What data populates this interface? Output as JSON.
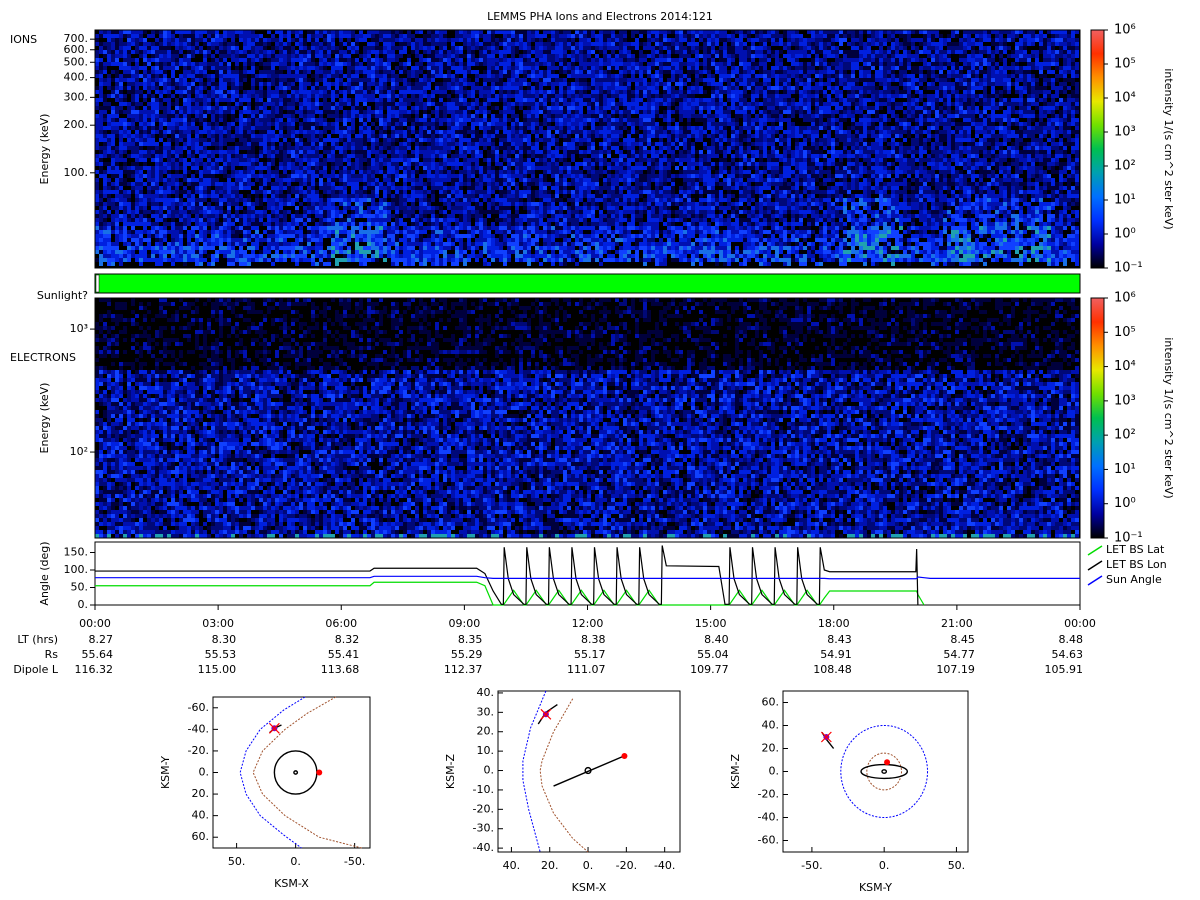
{
  "title": "LEMMS PHA Ions and Electrons  2014:121",
  "chart_data": [
    {
      "type": "spectrogram",
      "panel_label": "IONS",
      "ylabel": "Energy (keV)",
      "ylog": true,
      "ylim": [
        25,
        800
      ],
      "yticks": [
        {
          "value": 100,
          "label": "100."
        },
        {
          "value": 200,
          "label": "200."
        },
        {
          "value": 300,
          "label": "300."
        },
        {
          "value": 400,
          "label": "400."
        },
        {
          "value": 500,
          "label": "500."
        },
        {
          "value": 600,
          "label": "600."
        },
        {
          "value": 700,
          "label": "700."
        }
      ],
      "colorbar": {
        "label": "intensity 1/(s cm^2 ster keV)",
        "log": true,
        "lim": [
          0.1,
          1000000
        ],
        "ticks": [
          {
            "value": 0.1,
            "label": "10⁻¹"
          },
          {
            "value": 1,
            "label": "10⁰"
          },
          {
            "value": 10,
            "label": "10¹"
          },
          {
            "value": 100,
            "label": "10²"
          },
          {
            "value": 1000,
            "label": "10³"
          },
          {
            "value": 10000,
            "label": "10⁴"
          },
          {
            "value": 100000,
            "label": "10⁵"
          },
          {
            "value": 1000000,
            "label": "10⁶"
          }
        ],
        "colors": [
          "#000000",
          "#0000a0",
          "#0030ff",
          "#0070ff",
          "#00a0b0",
          "#00c050",
          "#70e000",
          "#e8e800",
          "#ff9000",
          "#ff3000",
          "#f06060"
        ]
      }
    },
    {
      "type": "status",
      "label": "Sunlight?",
      "color": "#00ff00"
    },
    {
      "type": "spectrogram",
      "panel_label": "ELECTRONS",
      "ylabel": "Energy (keV)",
      "ylog": true,
      "ylim": [
        20,
        1790
      ],
      "yticks": [
        {
          "value": 100,
          "label": "10²"
        },
        {
          "value": 1000,
          "label": "10³"
        }
      ],
      "colorbar": {
        "label": "intensity 1/(s cm^2 ster keV)",
        "log": true,
        "lim": [
          0.1,
          1000000
        ],
        "ticks": [
          {
            "value": 0.1,
            "label": "10⁻¹"
          },
          {
            "value": 1,
            "label": "10⁰"
          },
          {
            "value": 10,
            "label": "10¹"
          },
          {
            "value": 100,
            "label": "10²"
          },
          {
            "value": 1000,
            "label": "10³"
          },
          {
            "value": 10000,
            "label": "10⁴"
          },
          {
            "value": 100000,
            "label": "10⁵"
          },
          {
            "value": 1000000,
            "label": "10⁶"
          }
        ],
        "colors": [
          "#000000",
          "#0000a0",
          "#0030ff",
          "#0070ff",
          "#00a0b0",
          "#00c050",
          "#70e000",
          "#e8e800",
          "#ff9000",
          "#ff3000",
          "#f06060"
        ]
      }
    },
    {
      "type": "line",
      "ylabel": "Angle (deg)",
      "legend": "right",
      "xlim": [
        0,
        24
      ],
      "xticks": [
        {
          "value": 0,
          "label": "00:00"
        },
        {
          "value": 3,
          "label": "03:00"
        },
        {
          "value": 6,
          "label": "06:00"
        },
        {
          "value": 9,
          "label": "09:00"
        },
        {
          "value": 12,
          "label": "12:00"
        },
        {
          "value": 15,
          "label": "15:00"
        },
        {
          "value": 18,
          "label": "18:00"
        },
        {
          "value": 21,
          "label": "21:00"
        },
        {
          "value": 24,
          "label": "00:00"
        }
      ],
      "ylim": [
        0,
        180
      ],
      "yticks": [
        {
          "value": 0,
          "label": "0."
        },
        {
          "value": 50,
          "label": "50."
        },
        {
          "value": 100,
          "label": "100."
        },
        {
          "value": 150,
          "label": "150."
        }
      ],
      "x": [
        0,
        6.7,
        6.8,
        9.3,
        9.5,
        9.7,
        9.9,
        9.95,
        9.97,
        10.07,
        10.2,
        10.45,
        10.5,
        10.52,
        10.62,
        10.75,
        11.0,
        11.05,
        11.07,
        11.17,
        11.3,
        11.55,
        11.6,
        11.62,
        11.72,
        11.85,
        12.1,
        12.15,
        12.17,
        12.27,
        12.4,
        12.65,
        12.7,
        12.72,
        12.82,
        12.95,
        13.2,
        13.25,
        13.27,
        13.37,
        13.5,
        13.75,
        13.8,
        13.82,
        13.92,
        15.2,
        15.35,
        15.45,
        15.47,
        15.57,
        15.7,
        15.95,
        16.0,
        16.02,
        16.12,
        16.25,
        16.5,
        16.55,
        16.57,
        16.67,
        16.8,
        17.05,
        17.1,
        17.12,
        17.22,
        17.35,
        17.6,
        17.65,
        17.67,
        17.77,
        17.9,
        20.0,
        20.02,
        20.05,
        20.2,
        20.35,
        24
      ],
      "series": [
        {
          "name": "LET BS Lat",
          "color": "#00dd00",
          "values": [
            55,
            55,
            65,
            65,
            55,
            0,
            0,
            0,
            3,
            20,
            42,
            0,
            0,
            3,
            20,
            42,
            0,
            0,
            3,
            20,
            42,
            0,
            0,
            3,
            20,
            42,
            0,
            0,
            3,
            20,
            42,
            0,
            0,
            3,
            20,
            42,
            0,
            0,
            3,
            20,
            42,
            0,
            0,
            0,
            0,
            0,
            0,
            0,
            3,
            20,
            42,
            0,
            0,
            3,
            20,
            42,
            0,
            0,
            3,
            20,
            42,
            0,
            0,
            3,
            20,
            42,
            0,
            0,
            3,
            20,
            40,
            40,
            40,
            30,
            0,
            null,
            null
          ]
        },
        {
          "name": "LET BS Lon",
          "color": "#000000",
          "values": [
            97,
            97,
            105,
            105,
            90,
            40,
            2,
            2,
            165,
            75,
            30,
            2,
            2,
            165,
            75,
            30,
            2,
            2,
            165,
            75,
            30,
            2,
            2,
            165,
            75,
            30,
            2,
            2,
            165,
            75,
            30,
            2,
            2,
            165,
            75,
            30,
            2,
            2,
            165,
            75,
            30,
            2,
            2,
            170,
            112,
            110,
            2,
            2,
            165,
            75,
            30,
            2,
            2,
            165,
            75,
            30,
            2,
            2,
            165,
            75,
            30,
            2,
            2,
            165,
            75,
            30,
            2,
            2,
            165,
            100,
            95,
            95,
            160,
            0,
            null,
            null,
            null
          ]
        },
        {
          "name": "Sun Angle",
          "color": "#0000ff",
          "values": [
            78,
            78,
            82,
            82,
            78,
            76,
            76,
            76,
            76,
            76,
            76,
            76,
            76,
            76,
            76,
            76,
            76,
            76,
            76,
            76,
            76,
            76,
            76,
            76,
            76,
            76,
            76,
            76,
            76,
            76,
            76,
            76,
            76,
            76,
            76,
            76,
            76,
            76,
            76,
            76,
            76,
            76,
            76,
            76,
            76,
            76,
            76,
            76,
            76,
            76,
            76,
            76,
            76,
            76,
            76,
            76,
            76,
            76,
            76,
            76,
            76,
            76,
            76,
            76,
            76,
            76,
            76,
            76,
            76,
            76,
            75,
            75,
            76,
            80,
            78,
            76,
            76
          ]
        }
      ]
    },
    {
      "type": "orbit",
      "xlabel": "KSM-X",
      "ylabel": "KSM-Y",
      "xlim": [
        70,
        -63
      ],
      "ylim": [
        70,
        -70
      ],
      "xticks": [
        {
          "value": 50,
          "label": "50."
        },
        {
          "value": 0,
          "label": "0."
        },
        {
          "value": -50,
          "label": "-50."
        }
      ],
      "yticks": [
        {
          "value": -60,
          "label": "-60."
        },
        {
          "value": -40,
          "label": "-40."
        },
        {
          "value": -20,
          "label": "-20."
        },
        {
          "value": 0,
          "label": "0."
        },
        {
          "value": 20,
          "label": "20."
        },
        {
          "value": 40,
          "label": "40."
        },
        {
          "value": 60,
          "label": "60."
        }
      ],
      "curves": [
        {
          "color": "#0000ff",
          "dashed": true,
          "x": [
            -8,
            10,
            30,
            42,
            47,
            42,
            30,
            10,
            -5
          ],
          "y": [
            -70,
            -58,
            -40,
            -20,
            0,
            20,
            40,
            58,
            70
          ]
        },
        {
          "color": "#a0522d",
          "dashed": true,
          "x": [
            -34,
            -10,
            9,
            28,
            36,
            28,
            9,
            -20,
            -56
          ],
          "y": [
            -70,
            -55,
            -40,
            -20,
            0,
            20,
            40,
            60,
            70
          ]
        },
        {
          "color": "#000000",
          "dashed": false,
          "x": [
            22,
            18,
            12
          ],
          "y": [
            -37,
            -41,
            -44
          ]
        }
      ],
      "ellipses": [
        {
          "cx": 0,
          "cy": 0,
          "rx": 18,
          "ry": 20,
          "color": "#000000"
        },
        {
          "cx": 0,
          "cy": 0,
          "rx": 1.5,
          "ry": 1.5,
          "color": "#000000"
        }
      ],
      "points": [
        {
          "x": -20,
          "y": 0,
          "color": "#ff0000"
        },
        {
          "x": 18,
          "y": -41,
          "color": "#8000c0"
        }
      ]
    },
    {
      "type": "orbit",
      "xlabel": "KSM-X",
      "ylabel": "KSM-Z",
      "xlim": [
        47,
        -48
      ],
      "ylim": [
        -42,
        41
      ],
      "xticks": [
        {
          "value": 40,
          "label": "40."
        },
        {
          "value": 20,
          "label": "20."
        },
        {
          "value": 0,
          "label": "0."
        },
        {
          "value": -20,
          "label": "-20."
        },
        {
          "value": -40,
          "label": "-40."
        }
      ],
      "yticks": [
        {
          "value": 40,
          "label": "40."
        },
        {
          "value": 30,
          "label": "30."
        },
        {
          "value": 20,
          "label": "20."
        },
        {
          "value": 10,
          "label": "10."
        },
        {
          "value": 0,
          "label": "0."
        },
        {
          "value": -10,
          "label": "-10."
        },
        {
          "value": -20,
          "label": "-20."
        },
        {
          "value": -30,
          "label": "-30."
        },
        {
          "value": -40,
          "label": "-40."
        }
      ],
      "curves": [
        {
          "color": "#0000ff",
          "dashed": true,
          "x": [
            22,
            30,
            34,
            34,
            31,
            25
          ],
          "y": [
            41,
            22,
            5,
            -5,
            -20,
            -42
          ]
        },
        {
          "color": "#a0522d",
          "dashed": true,
          "x": [
            8,
            18,
            24,
            25,
            24,
            18,
            8,
            0
          ],
          "y": [
            37,
            20,
            5,
            0,
            -8,
            -22,
            -35,
            -42
          ]
        },
        {
          "color": "#000000",
          "dashed": false,
          "x": [
            16,
            22,
            26
          ],
          "y": [
            34,
            30,
            24
          ]
        },
        {
          "color": "#000000",
          "dashed": false,
          "x": [
            18,
            -20
          ],
          "y": [
            -8,
            8
          ]
        }
      ],
      "ellipses": [
        {
          "cx": 0,
          "cy": 0,
          "rx": 1.5,
          "ry": 1.5,
          "color": "#000000"
        }
      ],
      "points": [
        {
          "x": -19,
          "y": 7.5,
          "color": "#ff0000"
        },
        {
          "x": 22,
          "y": 29,
          "color": "#8000c0"
        }
      ]
    },
    {
      "type": "orbit",
      "xlabel": "KSM-Y",
      "ylabel": "KSM-Z",
      "xlim": [
        -70,
        58
      ],
      "ylim": [
        -70,
        70
      ],
      "xticks": [
        {
          "value": -50,
          "label": "-50."
        },
        {
          "value": 0,
          "label": "0."
        },
        {
          "value": 50,
          "label": "50."
        }
      ],
      "yticks": [
        {
          "value": 60,
          "label": "60."
        },
        {
          "value": 40,
          "label": "40."
        },
        {
          "value": 20,
          "label": "20."
        },
        {
          "value": 0,
          "label": "0."
        },
        {
          "value": -20,
          "label": "-20."
        },
        {
          "value": -40,
          "label": "-40."
        },
        {
          "value": -60,
          "label": "-60."
        }
      ],
      "curves": [
        {
          "color": "#000000",
          "dashed": false,
          "x": [
            -43,
            -40,
            -35
          ],
          "y": [
            34,
            28,
            20
          ]
        }
      ],
      "ellipses": [
        {
          "cx": 0,
          "cy": 0,
          "rx": 30,
          "ry": 40,
          "color": "#0000ff",
          "dashed": true
        },
        {
          "cx": 0,
          "cy": 0,
          "rx": 12,
          "ry": 16,
          "color": "#a0522d",
          "dashed": true
        },
        {
          "cx": 0,
          "cy": 0,
          "rx": 16,
          "ry": 6,
          "color": "#000000"
        },
        {
          "cx": 0,
          "cy": 0,
          "rx": 1.5,
          "ry": 1.5,
          "color": "#000000"
        }
      ],
      "points": [
        {
          "x": 2,
          "y": 8,
          "color": "#ff0000"
        },
        {
          "x": -40,
          "y": 30,
          "color": "#8000c0"
        }
      ]
    }
  ],
  "ephemeris": {
    "rows": [
      {
        "label": "LT (hrs)",
        "values": [
          "8.27",
          "8.30",
          "8.32",
          "8.35",
          "8.38",
          "8.40",
          "8.43",
          "8.45",
          "8.48"
        ]
      },
      {
        "label": "Rs",
        "values": [
          "55.64",
          "55.53",
          "55.41",
          "55.29",
          "55.17",
          "55.04",
          "54.91",
          "54.77",
          "54.63"
        ]
      },
      {
        "label": "Dipole L",
        "values": [
          "116.32",
          "115.00",
          "113.68",
          "112.37",
          "111.07",
          "109.77",
          "108.48",
          "107.19",
          "105.91"
        ]
      }
    ]
  }
}
